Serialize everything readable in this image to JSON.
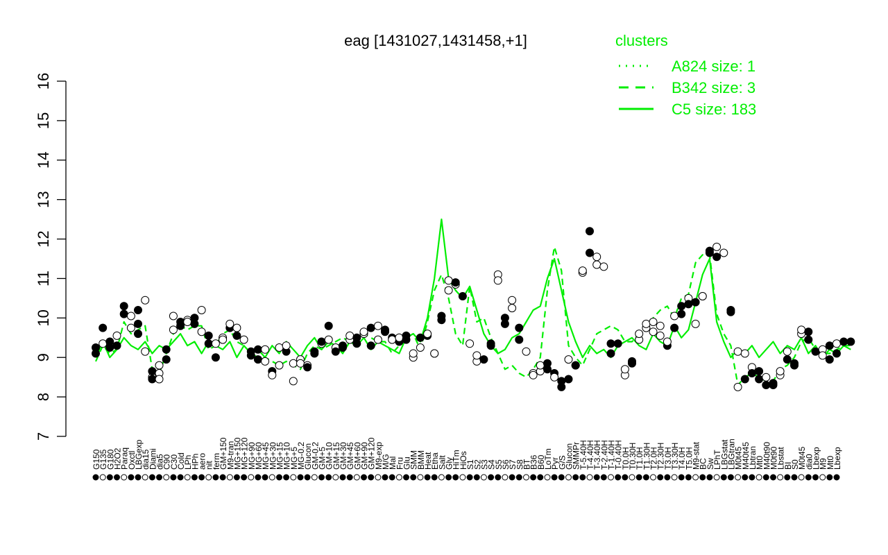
{
  "chart_data": {
    "type": "line",
    "title": "eag [1431027,1431458,+1]",
    "ylim": [
      7,
      16
    ],
    "yticks": [
      7,
      8,
      9,
      10,
      11,
      12,
      13,
      14,
      15,
      16
    ],
    "grid": false,
    "colors": {
      "line": "#00ee00",
      "points_dark": "#000000",
      "points_light": "#ffffff"
    },
    "legend": {
      "title": "clusters",
      "placement": "top-right",
      "entries": [
        {
          "label": "A824 size: 1",
          "style": "dotted"
        },
        {
          "label": "B342 size: 3",
          "style": "dashed"
        },
        {
          "label": "C5 size: 183",
          "style": "solid"
        }
      ]
    },
    "x_labels": [
      "G150",
      "G135",
      "G180",
      "H2O2",
      "Paraq",
      "Oxctl",
      "LBGexp",
      "dia15",
      "Diami",
      "dia5",
      "C90",
      "C30",
      "Cold",
      "LPh",
      "HPh",
      "aero",
      "nit",
      "ferm",
      "GM+150",
      "M9-tran",
      "MG+150",
      "MG+120",
      "MG+90",
      "MG+60",
      "MG+45",
      "MG+30",
      "MG+15",
      "MG+10",
      "MG+5",
      "MG-0.2",
      "Glucon",
      "GM-0.2",
      "GM+5",
      "GM+10",
      "GM+15",
      "GM+30",
      "GM+45",
      "GM+60",
      "GM+90",
      "GM+120",
      "M9-exp",
      "M/G",
      "Mal",
      "Fru",
      "Glu",
      "SMM",
      "BMM",
      "Heat",
      "Etha",
      "Salt",
      "Gly",
      "HiTm",
      "HiOs",
      "S1",
      "S2",
      "S3",
      "S4",
      "S5",
      "S6",
      "S7",
      "S8",
      "BT",
      "B36",
      "B60",
      "LoTm",
      "Pyr",
      "G/S",
      "Glucon",
      "SMMPr",
      "T-5.40H",
      "T-4.40H",
      "T-3.40H",
      "T-2.40H",
      "T-1.40H",
      "T-0.40H",
      "T0.0H",
      "T0.30H",
      "T1.0H",
      "T1.30H",
      "T2.0H",
      "T2.30H",
      "T3.0H",
      "T3.30H",
      "T4.0H",
      "T5.0H",
      "M9-stat",
      "BC",
      "Sw",
      "LPhT",
      "LBGstat",
      "LBGtran",
      "M0t45",
      "M40t45",
      "Lbtran",
      "Mt0",
      "M40t90",
      "M0t90",
      "Lbstat",
      "BI",
      "S0",
      "M0t45",
      "dia0",
      "Lbexp",
      "M9",
      "Mt0",
      "Lbexp"
    ],
    "series": [
      {
        "name": "C5 size: 183",
        "style": "solid",
        "values": [
          9.0,
          9.4,
          9.0,
          9.2,
          9.5,
          9.3,
          9.2,
          9.4,
          9.1,
          9.3,
          9.2,
          9.4,
          9.6,
          9.3,
          9.4,
          9.1,
          9.4,
          9.3,
          9.2,
          9.4,
          9.0,
          9.3,
          9.1,
          9.2,
          9.0,
          9.3,
          9.1,
          9.4,
          9.2,
          9.0,
          9.3,
          9.5,
          9.2,
          9.4,
          9.3,
          9.1,
          9.4,
          9.3,
          9.5,
          9.2,
          9.4,
          9.3,
          9.2,
          9.1,
          9.5,
          9.6,
          9.4,
          10.0,
          11.0,
          12.5,
          11.0,
          10.7,
          10.5,
          10.8,
          10.2,
          9.6,
          9.3,
          9.1,
          9.2,
          9.5,
          9.6,
          9.9,
          10.2,
          10.3,
          11.0,
          11.5,
          10.7,
          9.9,
          9.4,
          9.0,
          9.3,
          9.1,
          9.2,
          9.0,
          9.3,
          9.4,
          9.5,
          9.3,
          9.2,
          9.6,
          9.4,
          9.3,
          9.8,
          9.5,
          9.7,
          10.4,
          11.1,
          11.5,
          9.9,
          9.4,
          9.0,
          9.2,
          9.1,
          9.3,
          9.0,
          9.2,
          9.4,
          9.1,
          9.3,
          9.2,
          9.5,
          9.1,
          9.3,
          9.0,
          9.2,
          9.1,
          9.3,
          9.2
        ]
      },
      {
        "name": "B342 size: 3",
        "style": "dashed",
        "values": [
          8.9,
          9.3,
          9.1,
          9.2,
          9.9,
          9.6,
          9.7,
          9.8,
          8.7,
          8.6,
          9.1,
          9.6,
          9.8,
          9.7,
          9.8,
          9.8,
          9.2,
          9.3,
          9.6,
          9.7,
          9.4,
          9.3,
          9.1,
          9.0,
          9.0,
          8.9,
          8.8,
          8.9,
          8.8,
          8.7,
          9.1,
          9.3,
          9.2,
          9.3,
          9.4,
          9.5,
          9.4,
          9.5,
          9.6,
          9.5,
          9.4,
          9.4,
          9.1,
          9.3,
          9.5,
          9.6,
          9.2,
          9.9,
          10.7,
          11.1,
          10.5,
          9.6,
          9.3,
          10.8,
          9.9,
          10.0,
          9.5,
          9.1,
          8.7,
          8.8,
          8.6,
          8.5,
          8.7,
          9.0,
          10.7,
          11.8,
          11.2,
          9.3,
          9.0,
          8.8,
          9.2,
          9.6,
          9.7,
          9.8,
          9.7,
          9.4,
          9.4,
          9.6,
          9.8,
          10.0,
          10.2,
          10.3,
          10.0,
          10.5,
          10.6,
          11.4,
          11.6,
          11.6,
          10.1,
          9.6,
          9.3,
          8.3,
          8.5,
          8.6,
          8.5,
          8.4,
          8.4,
          8.7,
          8.8,
          9.0,
          9.4,
          9.5,
          9.2,
          9.1,
          9.1,
          9.2,
          9.3,
          9.3
        ]
      }
    ],
    "points": [
      [
        0,
        9.25,
        1
      ],
      [
        0,
        9.1,
        1
      ],
      [
        1,
        9.75,
        1
      ],
      [
        1,
        9.35,
        0
      ],
      [
        2,
        9.4,
        1
      ],
      [
        2,
        9.25,
        1
      ],
      [
        3,
        9.55,
        0
      ],
      [
        3,
        9.3,
        1
      ],
      [
        4,
        10.3,
        1
      ],
      [
        4,
        10.1,
        1
      ],
      [
        5,
        9.75,
        0
      ],
      [
        5,
        10.05,
        0
      ],
      [
        6,
        9.85,
        1
      ],
      [
        6,
        9.6,
        1
      ],
      [
        6,
        10.2,
        1
      ],
      [
        7,
        10.45,
        0
      ],
      [
        7,
        9.15,
        0
      ],
      [
        8,
        8.5,
        0
      ],
      [
        8,
        8.65,
        1
      ],
      [
        8,
        8.45,
        1
      ],
      [
        9,
        8.8,
        0
      ],
      [
        9,
        8.6,
        0
      ],
      [
        9,
        8.45,
        0
      ],
      [
        10,
        8.95,
        1
      ],
      [
        10,
        9.2,
        1
      ],
      [
        11,
        9.7,
        0
      ],
      [
        11,
        10.05,
        0
      ],
      [
        12,
        9.9,
        1
      ],
      [
        12,
        9.8,
        1
      ],
      [
        13,
        9.95,
        0
      ],
      [
        13,
        9.9,
        0
      ],
      [
        14,
        10.0,
        1
      ],
      [
        14,
        9.85,
        1
      ],
      [
        15,
        9.65,
        0
      ],
      [
        15,
        10.2,
        0
      ],
      [
        16,
        9.55,
        1
      ],
      [
        16,
        9.35,
        1
      ],
      [
        17,
        9.0,
        1
      ],
      [
        17,
        9.35,
        0
      ],
      [
        18,
        9.5,
        0
      ],
      [
        18,
        9.45,
        0
      ],
      [
        19,
        9.75,
        1
      ],
      [
        19,
        9.85,
        0
      ],
      [
        20,
        9.75,
        0
      ],
      [
        20,
        9.55,
        1
      ],
      [
        21,
        9.45,
        0
      ],
      [
        22,
        9.15,
        1
      ],
      [
        22,
        9.05,
        1
      ],
      [
        23,
        9.2,
        1
      ],
      [
        23,
        8.95,
        1
      ],
      [
        24,
        9.2,
        0
      ],
      [
        24,
        8.9,
        0
      ],
      [
        25,
        8.65,
        1
      ],
      [
        25,
        8.55,
        0
      ],
      [
        26,
        8.8,
        0
      ],
      [
        26,
        9.25,
        0
      ],
      [
        27,
        9.15,
        1
      ],
      [
        27,
        9.3,
        0
      ],
      [
        28,
        8.85,
        0
      ],
      [
        28,
        8.4,
        0
      ],
      [
        29,
        8.95,
        0
      ],
      [
        29,
        8.85,
        0
      ],
      [
        30,
        8.8,
        0
      ],
      [
        30,
        8.75,
        1
      ],
      [
        31,
        9.15,
        1
      ],
      [
        31,
        9.1,
        1
      ],
      [
        32,
        9.35,
        0
      ],
      [
        32,
        9.4,
        1
      ],
      [
        33,
        9.8,
        1
      ],
      [
        33,
        9.45,
        0
      ],
      [
        34,
        9.25,
        0
      ],
      [
        34,
        9.15,
        1
      ],
      [
        35,
        9.25,
        1
      ],
      [
        35,
        9.3,
        1
      ],
      [
        36,
        9.45,
        0
      ],
      [
        36,
        9.55,
        0
      ],
      [
        37,
        9.35,
        1
      ],
      [
        37,
        9.5,
        1
      ],
      [
        38,
        9.6,
        0
      ],
      [
        38,
        9.65,
        0
      ],
      [
        39,
        9.3,
        1
      ],
      [
        39,
        9.75,
        1
      ],
      [
        40,
        9.45,
        0
      ],
      [
        40,
        9.8,
        0
      ],
      [
        41,
        9.65,
        1
      ],
      [
        41,
        9.7,
        1
      ],
      [
        42,
        9.5,
        1
      ],
      [
        42,
        9.45,
        0
      ],
      [
        43,
        9.4,
        1
      ],
      [
        43,
        9.5,
        0
      ],
      [
        44,
        9.55,
        1
      ],
      [
        44,
        9.45,
        1
      ],
      [
        45,
        9.0,
        0
      ],
      [
        45,
        9.1,
        0
      ],
      [
        46,
        9.5,
        1
      ],
      [
        46,
        9.25,
        0
      ],
      [
        47,
        9.55,
        1
      ],
      [
        47,
        9.6,
        0
      ],
      [
        48,
        9.1,
        0
      ],
      [
        48,
        9.1,
        0
      ],
      [
        49,
        9.95,
        1
      ],
      [
        49,
        10.05,
        1
      ],
      [
        50,
        10.95,
        0
      ],
      [
        50,
        10.7,
        0
      ],
      [
        51,
        10.85,
        0
      ],
      [
        51,
        10.9,
        1
      ],
      [
        52,
        10.55,
        1
      ],
      [
        53,
        9.35,
        0
      ],
      [
        54,
        8.9,
        0
      ],
      [
        54,
        9.05,
        0
      ],
      [
        55,
        8.95,
        1
      ],
      [
        56,
        9.35,
        1
      ],
      [
        56,
        9.3,
        1
      ],
      [
        57,
        11.1,
        0
      ],
      [
        57,
        10.95,
        0
      ],
      [
        58,
        10.0,
        1
      ],
      [
        58,
        9.85,
        1
      ],
      [
        59,
        10.45,
        0
      ],
      [
        59,
        10.25,
        0
      ],
      [
        60,
        9.75,
        1
      ],
      [
        60,
        9.45,
        1
      ],
      [
        61,
        9.15,
        0
      ],
      [
        62,
        8.6,
        0
      ],
      [
        62,
        8.55,
        0
      ],
      [
        63,
        8.65,
        0
      ],
      [
        63,
        8.8,
        0
      ],
      [
        64,
        8.85,
        1
      ],
      [
        64,
        8.7,
        1
      ],
      [
        65,
        8.6,
        1
      ],
      [
        65,
        8.5,
        0
      ],
      [
        66,
        8.4,
        1
      ],
      [
        66,
        8.25,
        1
      ],
      [
        67,
        8.45,
        1
      ],
      [
        67,
        8.95,
        0
      ],
      [
        68,
        8.8,
        1
      ],
      [
        68,
        8.8,
        1
      ],
      [
        69,
        11.15,
        0
      ],
      [
        69,
        11.2,
        0
      ],
      [
        70,
        11.65,
        1
      ],
      [
        70,
        12.2,
        1
      ],
      [
        71,
        11.55,
        0
      ],
      [
        71,
        11.35,
        0
      ],
      [
        72,
        11.3,
        0
      ],
      [
        73,
        9.35,
        1
      ],
      [
        73,
        9.1,
        1
      ],
      [
        74,
        9.35,
        1
      ],
      [
        75,
        8.55,
        0
      ],
      [
        75,
        8.7,
        0
      ],
      [
        76,
        8.9,
        1
      ],
      [
        76,
        8.85,
        1
      ],
      [
        77,
        9.45,
        0
      ],
      [
        77,
        9.6,
        0
      ],
      [
        78,
        9.75,
        0
      ],
      [
        78,
        9.85,
        0
      ],
      [
        79,
        9.9,
        0
      ],
      [
        79,
        9.65,
        0
      ],
      [
        80,
        9.8,
        0
      ],
      [
        80,
        9.55,
        0
      ],
      [
        81,
        9.3,
        1
      ],
      [
        81,
        9.4,
        0
      ],
      [
        82,
        9.75,
        1
      ],
      [
        82,
        10.05,
        0
      ],
      [
        83,
        10.3,
        1
      ],
      [
        83,
        10.1,
        1
      ],
      [
        84,
        10.5,
        0
      ],
      [
        84,
        10.35,
        1
      ],
      [
        85,
        10.4,
        1
      ],
      [
        85,
        9.85,
        0
      ],
      [
        86,
        10.55,
        0
      ],
      [
        86,
        10.55,
        0
      ],
      [
        87,
        11.65,
        1
      ],
      [
        87,
        11.7,
        1
      ],
      [
        88,
        11.55,
        1
      ],
      [
        88,
        11.8,
        0
      ],
      [
        89,
        11.65,
        0
      ],
      [
        90,
        10.2,
        1
      ],
      [
        90,
        10.15,
        1
      ],
      [
        91,
        8.25,
        0
      ],
      [
        91,
        9.15,
        0
      ],
      [
        92,
        9.1,
        0
      ],
      [
        92,
        8.45,
        1
      ],
      [
        93,
        8.75,
        0
      ],
      [
        93,
        8.6,
        1
      ],
      [
        94,
        8.65,
        1
      ],
      [
        94,
        8.45,
        1
      ],
      [
        95,
        8.5,
        0
      ],
      [
        95,
        8.3,
        1
      ],
      [
        96,
        8.3,
        1
      ],
      [
        96,
        8.35,
        1
      ],
      [
        97,
        8.55,
        0
      ],
      [
        97,
        8.65,
        0
      ],
      [
        98,
        9.15,
        0
      ],
      [
        98,
        8.95,
        1
      ],
      [
        99,
        8.8,
        1
      ],
      [
        99,
        8.85,
        1
      ],
      [
        100,
        9.6,
        0
      ],
      [
        100,
        9.7,
        0
      ],
      [
        101,
        9.65,
        1
      ],
      [
        101,
        9.45,
        1
      ],
      [
        102,
        9.15,
        1
      ],
      [
        103,
        9.2,
        0
      ],
      [
        103,
        9.05,
        0
      ],
      [
        104,
        9.3,
        1
      ],
      [
        104,
        8.95,
        1
      ],
      [
        105,
        9.1,
        1
      ],
      [
        105,
        9.35,
        0
      ],
      [
        106,
        9.4,
        1
      ],
      [
        107,
        9.4,
        1
      ]
    ]
  }
}
